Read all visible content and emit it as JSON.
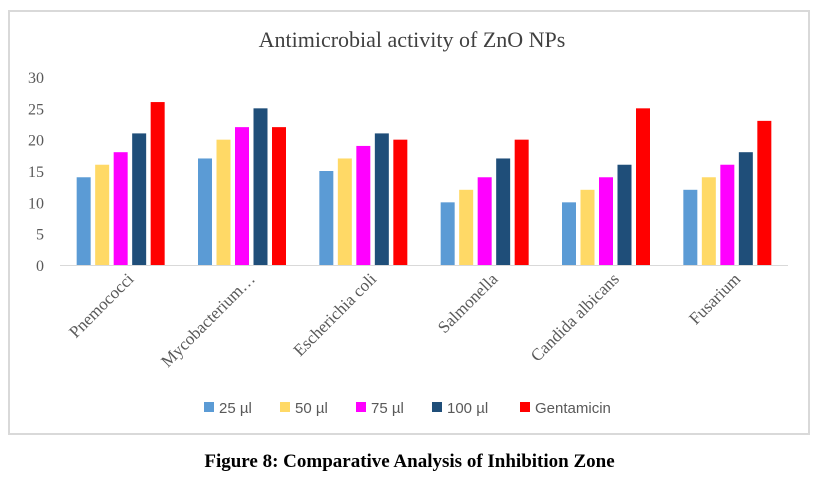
{
  "chart_data": {
    "type": "bar",
    "title": "Antimicrobial activity  of ZnO NPs",
    "categories": [
      "Pnemococci",
      "Mycobacterium…",
      "Escherichia coli",
      "Salmonella",
      "Candida albicans",
      "Fusarium"
    ],
    "series": [
      {
        "name": "25 µl",
        "color": "#5b9bd5",
        "values": [
          14,
          17,
          15,
          10,
          10,
          12
        ]
      },
      {
        "name": "50 µl",
        "color": "#ffd966",
        "values": [
          16,
          20,
          17,
          12,
          12,
          14
        ]
      },
      {
        "name": "75 µl",
        "color": "#ff00ff",
        "values": [
          18,
          22,
          19,
          14,
          14,
          16
        ]
      },
      {
        "name": "100 µl",
        "color": "#1f4e79",
        "values": [
          21,
          25,
          21,
          17,
          16,
          18
        ]
      },
      {
        "name": "Gentamicin",
        "color": "#ff0000",
        "values": [
          26,
          22,
          20,
          20,
          25,
          23
        ]
      }
    ],
    "ylim": [
      0,
      30
    ],
    "yticks": [
      0,
      5,
      10,
      15,
      20,
      25,
      30
    ],
    "xlabel": "",
    "ylabel": "",
    "grid": false,
    "legend": "bottom"
  },
  "caption": "Figure 8: Comparative Analysis of Inhibition Zone"
}
